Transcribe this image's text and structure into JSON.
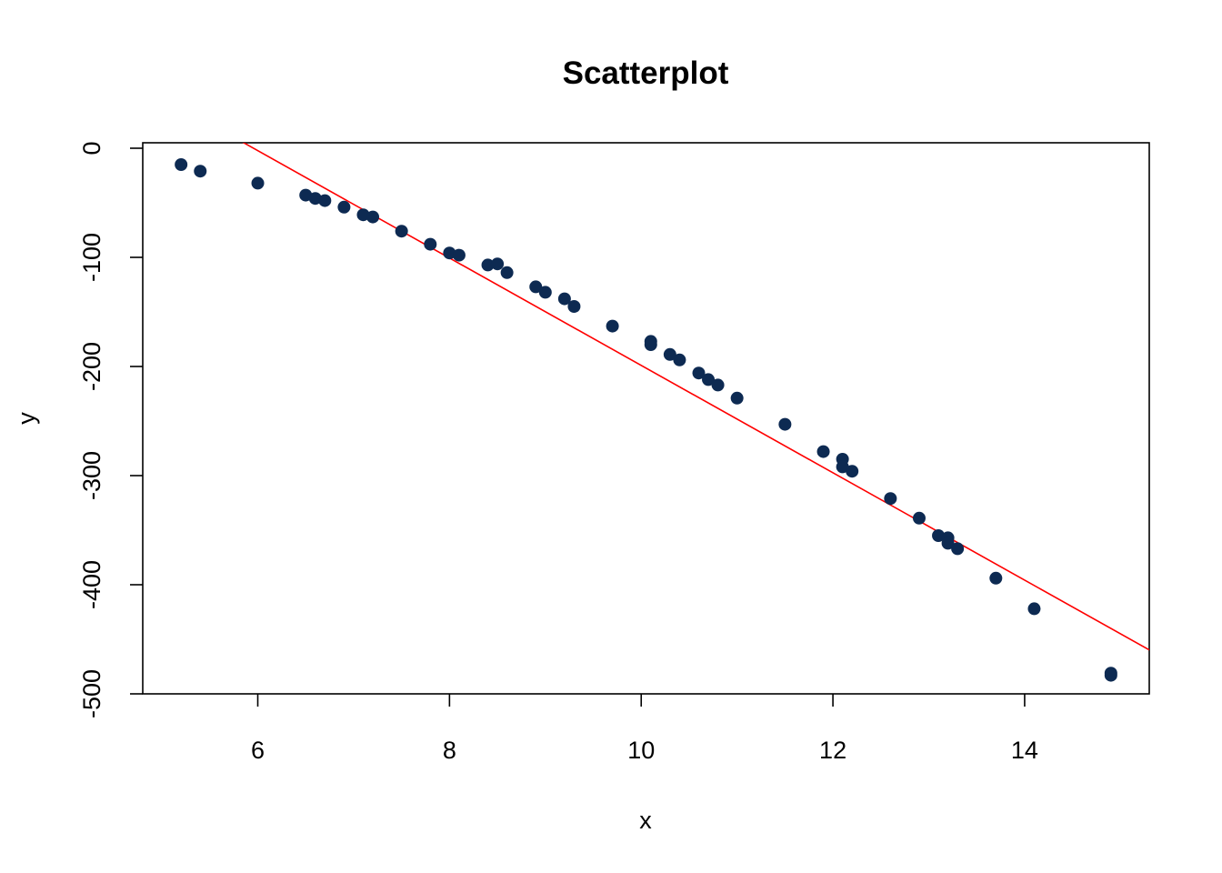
{
  "chart_data": {
    "type": "scatter",
    "title": "Scatterplot",
    "xlabel": "x",
    "ylabel": "y",
    "xlim": [
      4.8,
      15.3
    ],
    "ylim": [
      -500,
      5
    ],
    "x_ticks": [
      6,
      8,
      10,
      12,
      14
    ],
    "y_ticks": [
      0,
      -100,
      -200,
      -300,
      -400,
      -500
    ],
    "grid": false,
    "colors": {
      "points": "#0d2a52",
      "fit_line": "#ff0000"
    },
    "series": [
      {
        "points": [
          {
            "x": 5.2,
            "y": -15
          },
          {
            "x": 5.4,
            "y": -21
          },
          {
            "x": 6.0,
            "y": -32
          },
          {
            "x": 6.5,
            "y": -43
          },
          {
            "x": 6.6,
            "y": -46
          },
          {
            "x": 6.7,
            "y": -48
          },
          {
            "x": 6.9,
            "y": -54
          },
          {
            "x": 7.1,
            "y": -61
          },
          {
            "x": 7.2,
            "y": -63
          },
          {
            "x": 7.5,
            "y": -76
          },
          {
            "x": 7.8,
            "y": -88
          },
          {
            "x": 8.0,
            "y": -96
          },
          {
            "x": 8.1,
            "y": -98
          },
          {
            "x": 8.4,
            "y": -107
          },
          {
            "x": 8.5,
            "y": -106
          },
          {
            "x": 8.6,
            "y": -114
          },
          {
            "x": 8.9,
            "y": -127
          },
          {
            "x": 9.0,
            "y": -132
          },
          {
            "x": 9.2,
            "y": -138
          },
          {
            "x": 9.3,
            "y": -145
          },
          {
            "x": 9.7,
            "y": -163
          },
          {
            "x": 10.1,
            "y": -177
          },
          {
            "x": 10.1,
            "y": -180
          },
          {
            "x": 10.3,
            "y": -189
          },
          {
            "x": 10.4,
            "y": -194
          },
          {
            "x": 10.6,
            "y": -206
          },
          {
            "x": 10.7,
            "y": -212
          },
          {
            "x": 10.8,
            "y": -217
          },
          {
            "x": 11.0,
            "y": -229
          },
          {
            "x": 11.5,
            "y": -253
          },
          {
            "x": 11.9,
            "y": -278
          },
          {
            "x": 12.1,
            "y": -285
          },
          {
            "x": 12.1,
            "y": -292
          },
          {
            "x": 12.2,
            "y": -296
          },
          {
            "x": 12.6,
            "y": -321
          },
          {
            "x": 12.9,
            "y": -339
          },
          {
            "x": 13.1,
            "y": -355
          },
          {
            "x": 13.2,
            "y": -357
          },
          {
            "x": 13.2,
            "y": -362
          },
          {
            "x": 13.3,
            "y": -367
          },
          {
            "x": 13.7,
            "y": -394
          },
          {
            "x": 14.1,
            "y": -422
          },
          {
            "x": 14.9,
            "y": -481
          },
          {
            "x": 14.9,
            "y": -483
          }
        ]
      }
    ],
    "fit_line": {
      "slope": -49.2,
      "intercept": 293
    }
  }
}
